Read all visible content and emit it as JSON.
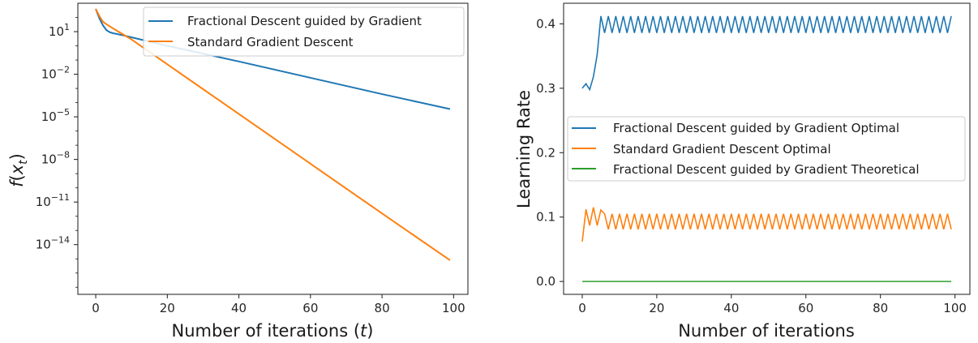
{
  "chart_data": [
    {
      "type": "line",
      "xlabel": "Number of iterations (t)",
      "ylabel": "f(x_t)",
      "yscale": "log",
      "xlim": [
        -5,
        104
      ],
      "ylim_exponent": [
        -17.5,
        3
      ],
      "x_ticks": [
        0,
        20,
        40,
        60,
        80,
        100
      ],
      "y_tick_exponents": [
        1,
        -2,
        -5,
        -8,
        -11,
        -14
      ],
      "legend_position": "top-right",
      "series": [
        {
          "name": "Fractional Descent guided by Gradient",
          "color": "#1f77b4",
          "x": [
            0,
            1,
            2,
            3,
            4,
            5,
            6,
            8,
            10,
            20,
            40,
            60,
            80,
            99
          ],
          "log10_y": [
            2.6,
            1.95,
            1.45,
            1.1,
            0.95,
            0.88,
            0.83,
            0.72,
            0.6,
            0.0,
            -1.1,
            -2.25,
            -3.4,
            -4.45
          ]
        },
        {
          "name": "Standard Gradient Descent",
          "color": "#ff7f0e",
          "x": [
            0,
            1,
            2,
            3,
            5,
            8,
            10,
            20,
            40,
            60,
            80,
            99
          ],
          "log10_y": [
            2.6,
            2.1,
            1.7,
            1.52,
            1.2,
            0.75,
            0.45,
            -1.3,
            -4.8,
            -8.3,
            -11.8,
            -15.1
          ]
        }
      ]
    },
    {
      "type": "line",
      "xlabel": "Number of iterations",
      "ylabel": "Learning Rate",
      "xlim": [
        -5,
        104
      ],
      "ylim": [
        -0.02,
        0.432
      ],
      "x_ticks": [
        0,
        20,
        40,
        60,
        80,
        100
      ],
      "y_ticks": [
        0.0,
        0.1,
        0.2,
        0.3,
        0.4
      ],
      "legend_position": "center-right",
      "series": [
        {
          "name": "Fractional Descent guided by Gradient Optimal",
          "color": "#1f77b4",
          "start_x": [
            0,
            1,
            2,
            3,
            4
          ],
          "start_y": [
            0.3,
            0.307,
            0.298,
            0.318,
            0.352
          ],
          "oscillation": {
            "from": 5,
            "to": 99,
            "high": 0.412,
            "low": 0.386
          }
        },
        {
          "name": "Standard Gradient Descent Optimal",
          "color": "#ff7f0e",
          "start_x": [
            0,
            1,
            2,
            3,
            4,
            5
          ],
          "start_y": [
            0.062,
            0.112,
            0.087,
            0.115,
            0.087,
            0.111
          ],
          "oscillation": {
            "from": 6,
            "to": 99,
            "high": 0.105,
            "low": 0.081
          }
        },
        {
          "name": "Fractional Descent guided by Gradient Theoretical",
          "color": "#2ca02c",
          "constant": {
            "from": 0,
            "to": 99,
            "value": 0.0
          }
        }
      ]
    }
  ]
}
